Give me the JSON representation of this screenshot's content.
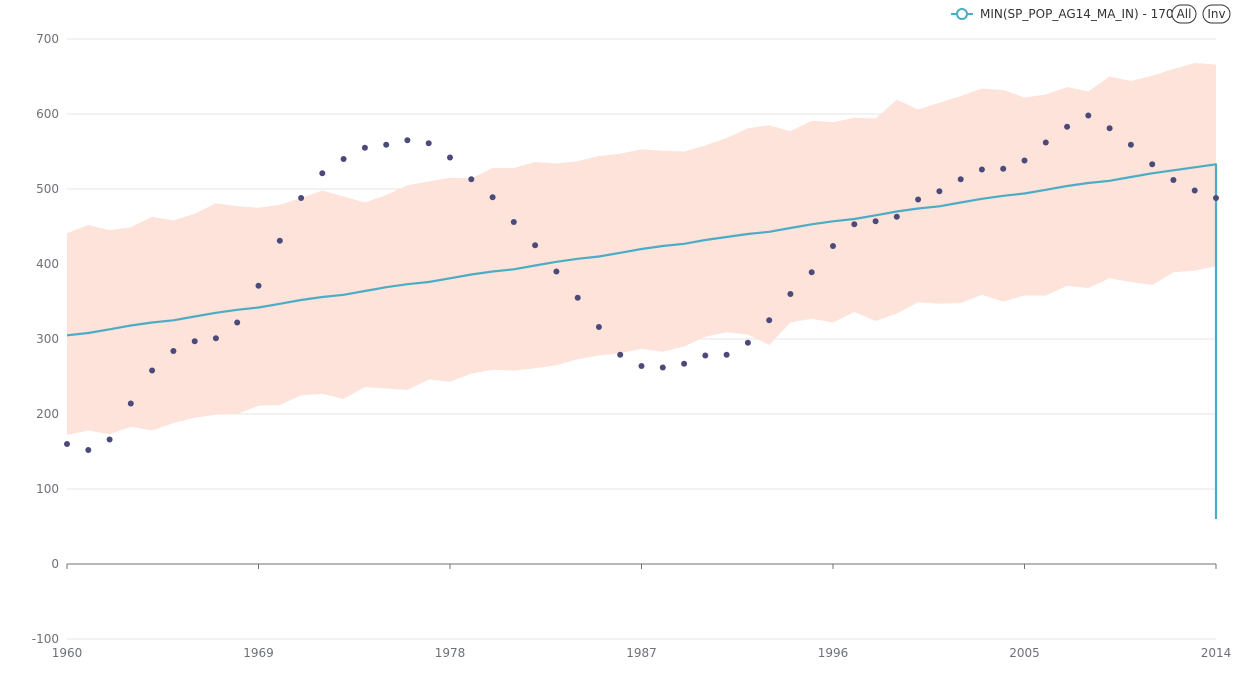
{
  "legend": {
    "series_label": "MIN(SP_POP_AG14_MA_IN) - 170",
    "all_button": "All",
    "inv_button": "Inv"
  },
  "colors": {
    "line": "#4bacc6",
    "band": "#fde3da",
    "points": "#4b4a7a",
    "grid": "#e6e6e6",
    "axis": "#6e7079"
  },
  "chart_data": {
    "type": "line",
    "title": "",
    "xlabel": "",
    "ylabel": "",
    "xlim": [
      1960,
      2014
    ],
    "ylim": [
      -100,
      700
    ],
    "yticks": [
      -100,
      0,
      100,
      200,
      300,
      400,
      500,
      600,
      700
    ],
    "xticks": [
      1960,
      1969,
      1978,
      1987,
      1996,
      2005,
      2014
    ],
    "x": [
      1960,
      1961,
      1962,
      1963,
      1964,
      1965,
      1966,
      1967,
      1968,
      1969,
      1970,
      1971,
      1972,
      1973,
      1974,
      1975,
      1976,
      1977,
      1978,
      1979,
      1980,
      1981,
      1982,
      1983,
      1984,
      1985,
      1986,
      1987,
      1988,
      1989,
      1990,
      1991,
      1992,
      1993,
      1994,
      1995,
      1996,
      1997,
      1998,
      1999,
      2000,
      2001,
      2002,
      2003,
      2004,
      2005,
      2006,
      2007,
      2008,
      2009,
      2010,
      2011,
      2012,
      2013,
      2014
    ],
    "series": [
      {
        "name": "MIN(SP_POP_AG14_MA_IN) - 170",
        "kind": "line",
        "values": [
          305,
          308,
          313,
          318,
          322,
          325,
          330,
          335,
          339,
          342,
          347,
          352,
          356,
          359,
          364,
          369,
          373,
          376,
          381,
          386,
          390,
          393,
          398,
          403,
          407,
          410,
          415,
          420,
          424,
          427,
          432,
          436,
          440,
          443,
          448,
          453,
          457,
          460,
          465,
          470,
          474,
          477,
          482,
          487,
          491,
          494,
          499,
          504,
          508,
          511,
          516,
          521,
          525,
          529,
          533
        ],
        "end_drop_to": 60
      },
      {
        "kind": "band",
        "upper": [
          441,
          452,
          445,
          449,
          463,
          458,
          467,
          481,
          477,
          475,
          479,
          488,
          498,
          490,
          482,
          492,
          505,
          510,
          515,
          514,
          528,
          528,
          536,
          534,
          537,
          544,
          547,
          553,
          551,
          550,
          558,
          568,
          581,
          585,
          577,
          591,
          589,
          595,
          594,
          619,
          606,
          615,
          624,
          634,
          632,
          622,
          626,
          636,
          630,
          650,
          644,
          651,
          660,
          668,
          666
        ],
        "lower": [
          172,
          178,
          173,
          183,
          178,
          188,
          195,
          199,
          200,
          211,
          212,
          225,
          227,
          220,
          236,
          234,
          232,
          246,
          243,
          254,
          259,
          258,
          261,
          265,
          273,
          278,
          281,
          287,
          283,
          290,
          303,
          309,
          306,
          292,
          322,
          327,
          322,
          336,
          324,
          334,
          349,
          347,
          348,
          359,
          350,
          358,
          358,
          371,
          368,
          381,
          376,
          372,
          389,
          391,
          397
        ]
      },
      {
        "kind": "scatter",
        "values": [
          160,
          152,
          166,
          214,
          258,
          284,
          297,
          301,
          322,
          371,
          431,
          488,
          521,
          540,
          555,
          559,
          565,
          561,
          542,
          513,
          489,
          456,
          425,
          390,
          355,
          316,
          279,
          264,
          262,
          267,
          278,
          279,
          295,
          325,
          360,
          389,
          424,
          453,
          457,
          463,
          486,
          497,
          513,
          526,
          527,
          538,
          562,
          583,
          598,
          581,
          559,
          533,
          512,
          498,
          488
        ]
      }
    ]
  }
}
